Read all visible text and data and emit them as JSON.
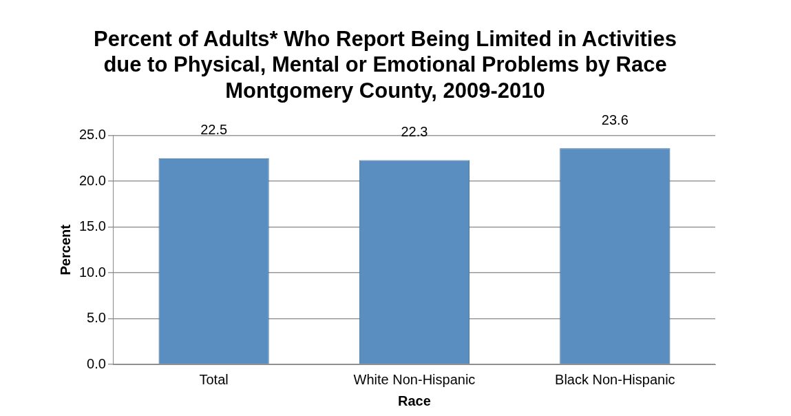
{
  "chart_data": {
    "type": "bar",
    "title": "Percent of Adults* Who Report Being Limited in Activities\ndue to Physical, Mental or Emotional Problems by Race\nMontgomery County, 2009-2010",
    "xlabel": "Race",
    "ylabel": "Percent",
    "categories": [
      "Total",
      "White Non-Hispanic",
      "Black Non-Hispanic"
    ],
    "values": [
      22.5,
      22.3,
      23.6
    ],
    "color": "#5b8ec0",
    "ylim": [
      0,
      25
    ],
    "yticks": [
      {
        "value": 0,
        "label": "0.0"
      },
      {
        "value": 5,
        "label": "5.0"
      },
      {
        "value": 10,
        "label": "10.0"
      },
      {
        "value": 15,
        "label": "15.0"
      },
      {
        "value": 20,
        "label": "20.0"
      },
      {
        "value": 25,
        "label": "25.0"
      }
    ],
    "grid": true,
    "data_labels": true,
    "legend": false
  }
}
